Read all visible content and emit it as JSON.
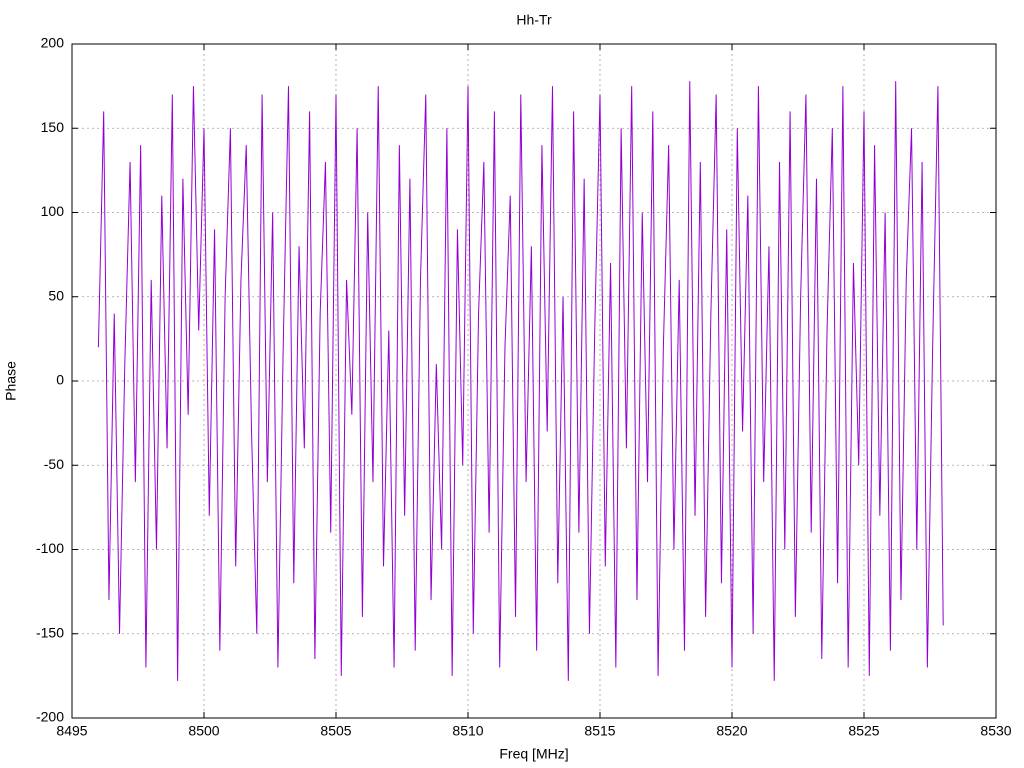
{
  "chart_data": {
    "type": "line",
    "title": "Hh-Tr",
    "x_label": "Freq [MHz]",
    "y_label": "Phase",
    "x": [
      8496.0,
      8496.2,
      8496.4,
      8496.6,
      8496.8,
      8497.0,
      8497.2,
      8497.4,
      8497.6,
      8497.8,
      8498.0,
      8498.2,
      8498.4,
      8498.6,
      8498.8,
      8499.0,
      8499.2,
      8499.4,
      8499.6,
      8499.8,
      8500.0,
      8500.2,
      8500.4,
      8500.6,
      8500.8,
      8501.0,
      8501.2,
      8501.4,
      8501.6,
      8501.8,
      8502.0,
      8502.2,
      8502.4,
      8502.6,
      8502.8,
      8503.0,
      8503.2,
      8503.4,
      8503.6,
      8503.8,
      8504.0,
      8504.2,
      8504.4,
      8504.6,
      8504.8,
      8505.0,
      8505.2,
      8505.4,
      8505.6,
      8505.8,
      8506.0,
      8506.2,
      8506.4,
      8506.6,
      8506.8,
      8507.0,
      8507.2,
      8507.4,
      8507.6,
      8507.8,
      8508.0,
      8508.2,
      8508.4,
      8508.6,
      8508.8,
      8509.0,
      8509.2,
      8509.4,
      8509.6,
      8509.8,
      8510.0,
      8510.2,
      8510.4,
      8510.6,
      8510.8,
      8511.0,
      8511.2,
      8511.4,
      8511.6,
      8511.8,
      8512.0,
      8512.2,
      8512.4,
      8512.6,
      8512.8,
      8513.0,
      8513.2,
      8513.4,
      8513.6,
      8513.8,
      8514.0,
      8514.2,
      8514.4,
      8514.6,
      8514.8,
      8515.0,
      8515.2,
      8515.4,
      8515.6,
      8515.8,
      8516.0,
      8516.2,
      8516.4,
      8516.6,
      8516.8,
      8517.0,
      8517.2,
      8517.4,
      8517.6,
      8517.8,
      8518.0,
      8518.2,
      8518.4,
      8518.6,
      8518.8,
      8519.0,
      8519.2,
      8519.4,
      8519.6,
      8519.8,
      8520.0,
      8520.2,
      8520.4,
      8520.6,
      8520.8,
      8521.0,
      8521.2,
      8521.4,
      8521.6,
      8521.8,
      8522.0,
      8522.2,
      8522.4,
      8522.6,
      8522.8,
      8523.0,
      8523.2,
      8523.4,
      8523.6,
      8523.8,
      8524.0,
      8524.2,
      8524.4,
      8524.6,
      8524.8,
      8525.0,
      8525.2,
      8525.4,
      8525.6,
      8525.8,
      8526.0,
      8526.2,
      8526.4,
      8526.6,
      8526.8,
      8527.0,
      8527.2,
      8527.4,
      8527.6,
      8527.8,
      8528.0
    ],
    "series": [
      {
        "name": "Hh-Tr",
        "color": "#9400d3",
        "values": [
          20,
          160,
          -130,
          40,
          -150,
          10,
          130,
          -60,
          140,
          -170,
          60,
          -100,
          110,
          -40,
          170,
          -178,
          120,
          -20,
          175,
          30,
          150,
          -80,
          90,
          -160,
          50,
          150,
          -110,
          60,
          140,
          -30,
          -150,
          170,
          -60,
          100,
          -170,
          20,
          175,
          -120,
          80,
          -40,
          160,
          -165,
          40,
          130,
          -90,
          170,
          -175,
          60,
          -20,
          150,
          -140,
          100,
          -60,
          175,
          -110,
          30,
          -170,
          140,
          -80,
          120,
          -160,
          60,
          170,
          -130,
          10,
          -100,
          150,
          -175,
          90,
          -50,
          175,
          -150,
          40,
          130,
          -90,
          160,
          -170,
          20,
          110,
          -140,
          170,
          -60,
          80,
          -160,
          140,
          -30,
          175,
          -120,
          50,
          -178,
          160,
          -90,
          120,
          -150,
          30,
          170,
          -110,
          70,
          -170,
          150,
          -40,
          175,
          -130,
          100,
          -60,
          160,
          -175,
          20,
          140,
          -100,
          60,
          -160,
          178,
          -80,
          130,
          -140,
          40,
          170,
          -120,
          90,
          -170,
          150,
          -30,
          110,
          -150,
          175,
          -60,
          80,
          -178,
          130,
          -100,
          160,
          -140,
          50,
          170,
          -90,
          120,
          -165,
          30,
          150,
          -120,
          175,
          -170,
          70,
          -50,
          160,
          -175,
          140,
          -80,
          100,
          -160,
          178,
          -130,
          60,
          150,
          -100,
          130,
          -170,
          20,
          175,
          -145
        ]
      }
    ],
    "xlim": [
      8495,
      8530
    ],
    "xticks": [
      8495,
      8500,
      8505,
      8510,
      8515,
      8520,
      8525,
      8530
    ],
    "ylim": [
      -200,
      200
    ],
    "yticks": [
      -200,
      -150,
      -100,
      -50,
      0,
      50,
      100,
      150,
      200
    ],
    "grid": true
  }
}
